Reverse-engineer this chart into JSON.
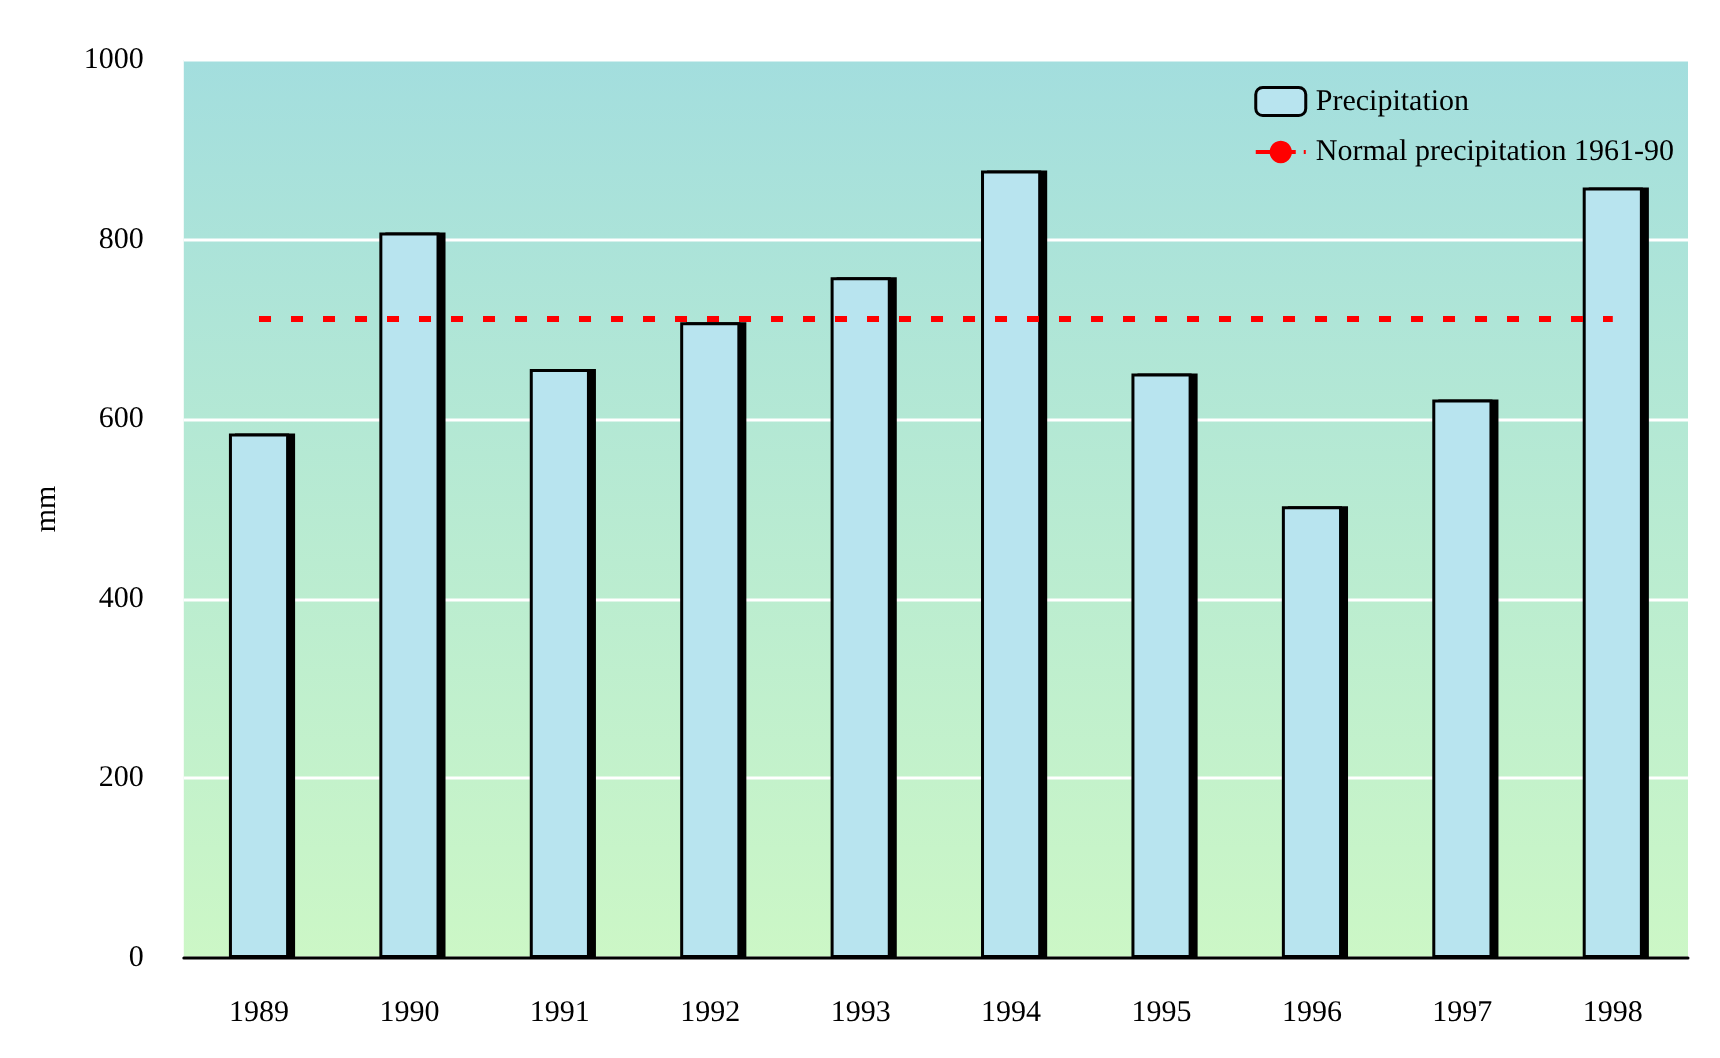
{
  "chart_data": {
    "type": "bar",
    "ylabel": "mm",
    "categories": [
      "1989",
      "1990",
      "1991",
      "1992",
      "1993",
      "1994",
      "1995",
      "1996",
      "1997",
      "1998"
    ],
    "series": [
      {
        "name": "Precipitation",
        "color": "#b8e4ef",
        "values": [
          584,
          808,
          656,
          708,
          758,
          877,
          651,
          503,
          622,
          858
        ]
      }
    ],
    "ylim": [
      0,
      1000
    ],
    "yticks": [
      0,
      200,
      400,
      600,
      800,
      1000
    ],
    "grid": "y",
    "legend": "top right",
    "ref_lines": [
      {
        "axis": "y",
        "value": 713,
        "label": "Normal precipitation 1961-90",
        "color": "#ff0000",
        "line_style": "dashed"
      }
    ]
  }
}
